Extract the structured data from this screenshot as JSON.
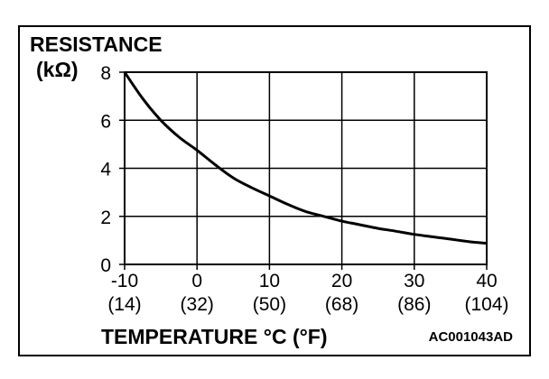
{
  "chart_data": {
    "type": "line",
    "title": "",
    "ylabel": "RESISTANCE",
    "yunit": "(kΩ)",
    "xlabel": "TEMPERATURE °C (°F)",
    "code": "AC001043AD",
    "xlim": [
      -10,
      40
    ],
    "ylim": [
      0,
      8
    ],
    "grid": true,
    "x_ticks": [
      {
        "c": "-10",
        "f": "(14)"
      },
      {
        "c": "0",
        "f": "(32)"
      },
      {
        "c": "10",
        "f": "(50)"
      },
      {
        "c": "20",
        "f": "(68)"
      },
      {
        "c": "30",
        "f": "(86)"
      },
      {
        "c": "40",
        "f": "(104)"
      }
    ],
    "y_ticks": [
      "0",
      "2",
      "4",
      "6",
      "8"
    ],
    "series": [
      {
        "color": "#000000",
        "x": [
          -10,
          -7.5,
          -5,
          -2.5,
          0,
          2.5,
          5,
          7.5,
          10,
          12.5,
          15,
          17.5,
          20,
          22.5,
          25,
          27.5,
          30,
          32.5,
          35,
          37.5,
          40
        ],
        "y": [
          8.0,
          6.9,
          6.0,
          5.3,
          4.75,
          4.15,
          3.6,
          3.2,
          2.85,
          2.5,
          2.2,
          2.0,
          1.8,
          1.65,
          1.5,
          1.38,
          1.25,
          1.15,
          1.05,
          0.95,
          0.88
        ]
      }
    ]
  }
}
